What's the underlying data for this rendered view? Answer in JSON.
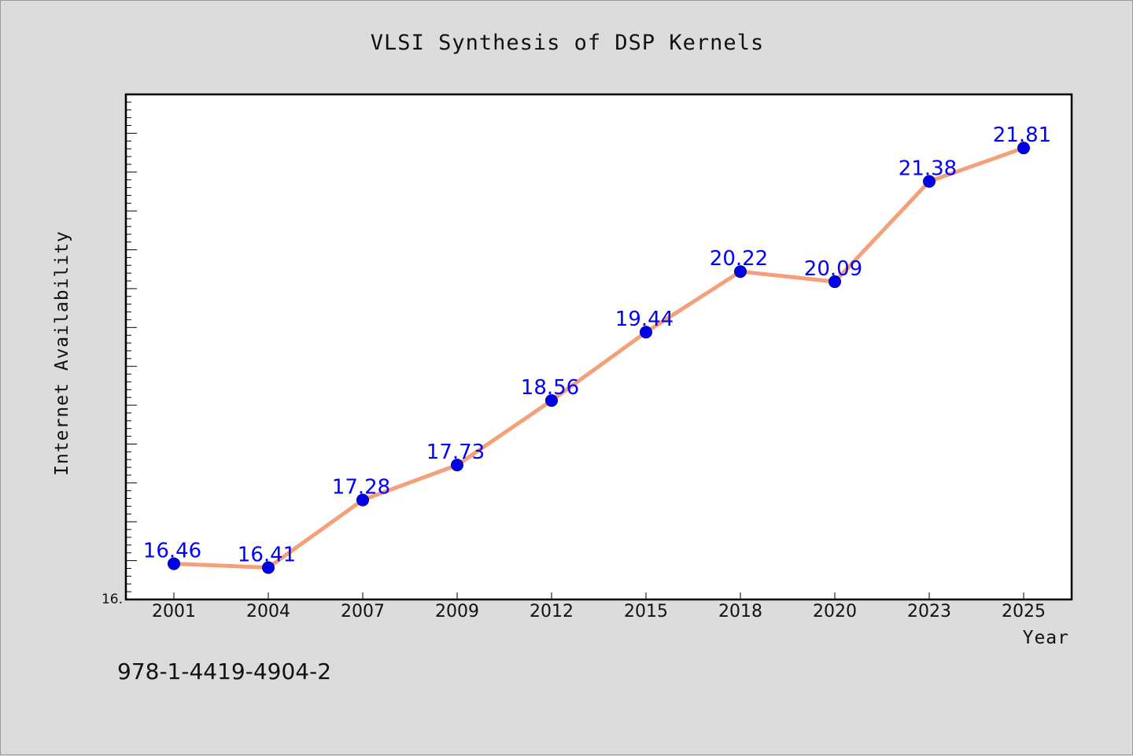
{
  "chart_data": {
    "type": "line",
    "title": "VLSI Synthesis of DSP Kernels",
    "xlabel": "Year",
    "ylabel": "Internet Availability",
    "categories": [
      "2001",
      "2004",
      "2007",
      "2009",
      "2012",
      "2015",
      "2018",
      "2020",
      "2023",
      "2025"
    ],
    "series": [
      {
        "values": [
          16.46,
          16.41,
          17.28,
          17.73,
          18.56,
          19.44,
          20.22,
          20.09,
          21.38,
          21.81
        ],
        "data_labels": [
          "16.46",
          "16.41",
          "17.28",
          "17.73",
          "18.56",
          "19.44",
          "20.22",
          "20.09",
          "21.38",
          "21.81"
        ]
      }
    ],
    "ylim": [
      16.0,
      22.5
    ],
    "y_tick_label": "16.",
    "line_color": "#f4a07a",
    "marker_color": "#0000ee",
    "label_color": "#0000ff",
    "grid": false,
    "legend": "none"
  },
  "footer": {
    "isbn": "978-1-4419-4904-2"
  }
}
